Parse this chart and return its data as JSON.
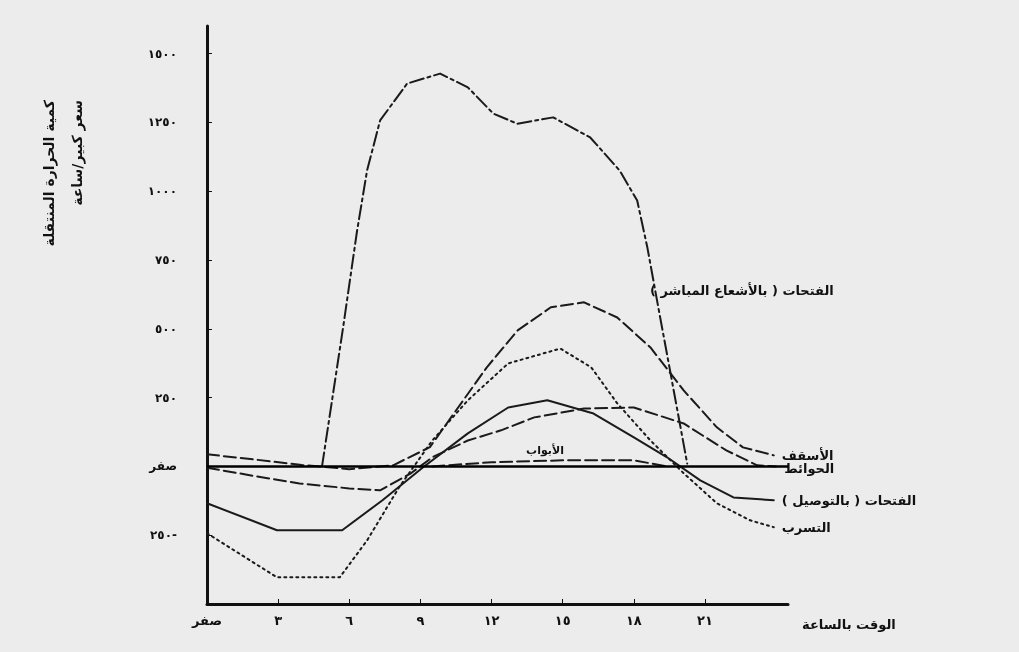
{
  "chart_data": {
    "type": "line",
    "ylabel": "كمية الحرارة المنتقلة\nسعر كبير/ساعة",
    "xlabel": "الوقت بالساعة",
    "xlim": [
      0,
      24.5
    ],
    "xticks": [
      {
        "value": 0,
        "label": "صفر"
      },
      {
        "value": 3,
        "label": "٣"
      },
      {
        "value": 6,
        "label": "٦"
      },
      {
        "value": 9,
        "label": "٩"
      },
      {
        "value": 12,
        "label": "١٢"
      },
      {
        "value": 15,
        "label": "١٥"
      },
      {
        "value": 18,
        "label": "١٨"
      },
      {
        "value": 21,
        "label": "٢١"
      }
    ],
    "ylim": [
      -500,
      1600
    ],
    "yticks": [
      {
        "value": -250,
        "label": "٢٥٠-"
      },
      {
        "value": 0,
        "label": "صفر"
      },
      {
        "value": 250,
        "label": "٢٥٠"
      },
      {
        "value": 500,
        "label": "٥٠٠"
      },
      {
        "value": 750,
        "label": "٧٥٠"
      },
      {
        "value": 1000,
        "label": "١٠٠٠"
      },
      {
        "value": 1250,
        "label": "١٢٥٠"
      },
      {
        "value": 1500,
        "label": "١٥٠٠"
      }
    ],
    "grid": false,
    "legend": false,
    "marker": "none",
    "ref_lines": [
      {
        "axis": "y",
        "value": 0,
        "color": "#000000"
      }
    ],
    "annotations": [
      "الفتحات ( بالأشعاع المباشر )",
      "الأبواب"
    ],
    "series": [
      {
        "color": "#1a1a1a",
        "line_style": "dashed",
        "x": [
          4.85,
          5.74,
          6.33,
          6.75,
          7.3,
          8.44,
          9.83,
          11,
          12.07,
          13.08,
          14.6,
          16.16,
          17.4,
          18.14,
          18.57,
          19,
          19.5,
          20.25
        ],
        "values": [
          0,
          505,
          857,
          1075,
          1257,
          1391,
          1427,
          1377,
          1282,
          1245,
          1268,
          1195,
          1075,
          966,
          795,
          592,
          360,
          10
        ]
      },
      {
        "name": "الأسقف",
        "color": "#1a1a1a",
        "line_style": "dashed",
        "x": [
          0,
          2,
          4,
          6,
          7.85,
          9.4,
          10.5,
          11.8,
          13.1,
          14.5,
          15.9,
          17.3,
          18.7,
          20.1,
          21.5,
          22.6,
          23.9
        ],
        "values": [
          44,
          25,
          5,
          -10,
          4,
          70,
          203,
          360,
          494,
          578,
          596,
          541,
          432,
          276,
          142,
          69,
          40
        ]
      },
      {
        "name": "الحوائط",
        "color": "#1a1a1a",
        "line_style": "dashed",
        "x": [
          0,
          2,
          3.9,
          6,
          7.3,
          8.6,
          9.5,
          11,
          12.4,
          13.8,
          15.9,
          18,
          20.1,
          21.9,
          23.2,
          24
        ],
        "values": [
          -5,
          -35,
          -62,
          -80,
          -87,
          -25,
          33,
          94,
          131,
          178,
          210,
          214,
          156,
          58,
          4,
          0
        ]
      },
      {
        "name": "الفتحات ( بالتوصيل )",
        "color": "#1a1a1a",
        "line_style": "solid",
        "x": [
          0,
          2.95,
          5.7,
          7.4,
          9.1,
          11,
          12.7,
          14.35,
          16.3,
          18,
          19.4,
          20.8,
          22.2,
          23.9
        ],
        "values": [
          -134,
          -232,
          -232,
          -123,
          -4,
          120,
          214,
          240,
          192,
          105,
          33,
          -51,
          -113,
          -123
        ]
      },
      {
        "name": "التسرب",
        "color": "#1a1a1a",
        "line_style": "dotted",
        "x": [
          0,
          2.95,
          5.6,
          6.75,
          8.1,
          9.5,
          11,
          12.7,
          14.9,
          16.2,
          17.3,
          18.7,
          20.1,
          21.5,
          22.9,
          23.9
        ],
        "values": [
          -243,
          -403,
          -403,
          -269,
          -76,
          94,
          240,
          374,
          428,
          360,
          229,
          94,
          -25,
          -134,
          -196,
          -221
        ]
      },
      {
        "color": "#1a1a1a",
        "line_style": "dashed",
        "x": [
          9.5,
          12,
          15,
          18,
          19.4
        ],
        "values": [
          0,
          15,
          22,
          22,
          0
        ]
      }
    ]
  }
}
